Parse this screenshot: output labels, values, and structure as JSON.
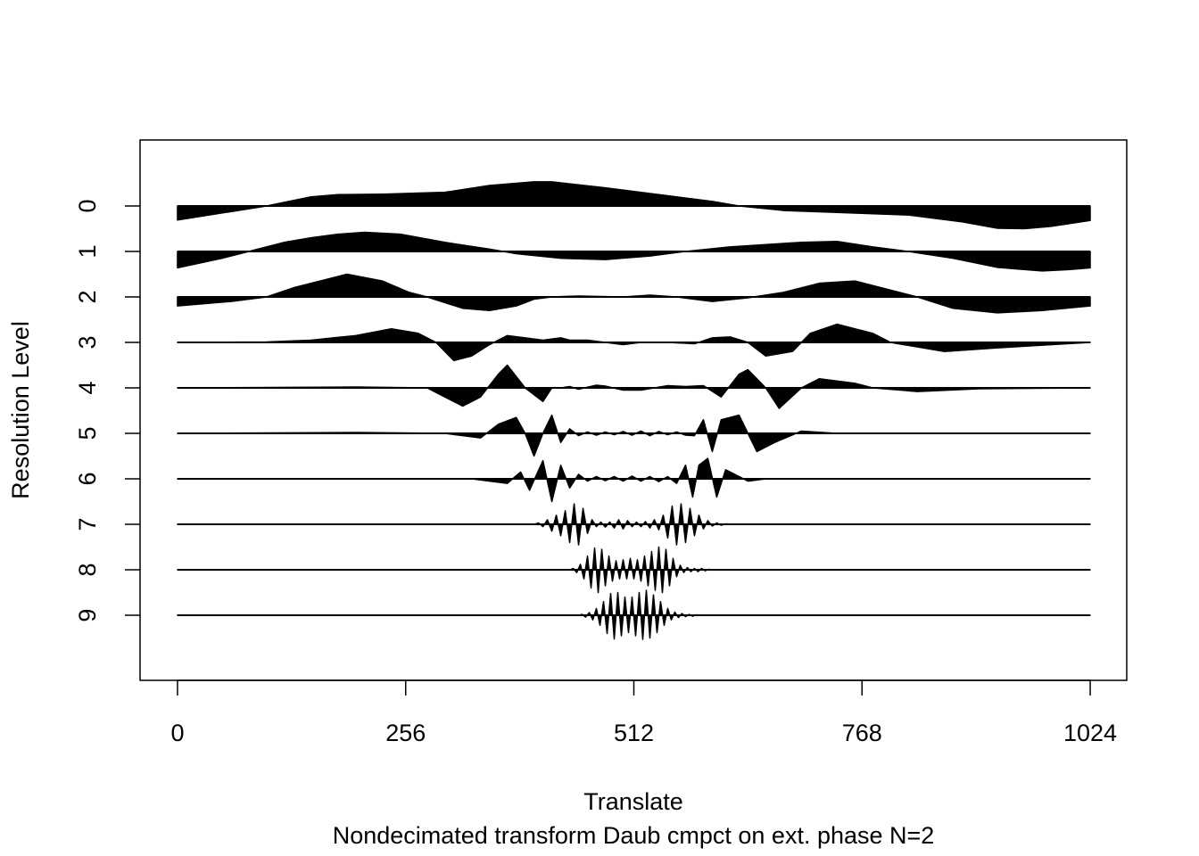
{
  "chart_data": {
    "type": "wiggle",
    "x_label": "Translate",
    "subtitle": "Nondecimated transform Daub cmpct on ext. phase N=2",
    "y_label": "Resolution Level",
    "xlim": [
      -42,
      1065
    ],
    "xticks": [
      0,
      256,
      512,
      768,
      1024
    ],
    "ylim": [
      10.43,
      -1.45
    ],
    "yticks": [
      0,
      1,
      2,
      3,
      4,
      5,
      6,
      7,
      8,
      9
    ],
    "color": "#000000",
    "series": [
      {
        "x": [
          0,
          100,
          150,
          180,
          230,
          300,
          350,
          400,
          420,
          480,
          540,
          600,
          630,
          680,
          750,
          820,
          880,
          920,
          950,
          980,
          1024
        ],
        "values": [
          -0.31,
          0,
          0.2,
          0.25,
          0.26,
          0.3,
          0.45,
          0.53,
          0.53,
          0.4,
          0.25,
          0.1,
          0,
          -0.1,
          -0.15,
          -0.2,
          -0.35,
          -0.49,
          -0.5,
          -0.45,
          -0.32
        ]
      },
      {
        "x": [
          0,
          50,
          80,
          120,
          150,
          180,
          210,
          250,
          300,
          350,
          380,
          430,
          480,
          530,
          570,
          620,
          700,
          740,
          780,
          820,
          870,
          920,
          970,
          1000,
          1024
        ],
        "values": [
          -0.36,
          -0.15,
          0,
          0.2,
          0.3,
          0.38,
          0.42,
          0.38,
          0.2,
          0.05,
          -0.05,
          -0.15,
          -0.18,
          -0.1,
          0,
          0.1,
          0.2,
          0.22,
          0.1,
          0,
          -0.15,
          -0.35,
          -0.43,
          -0.4,
          -0.36
        ]
      },
      {
        "x": [
          0,
          60,
          100,
          130,
          190,
          230,
          260,
          280,
          320,
          350,
          380,
          400,
          420,
          450,
          500,
          530,
          560,
          600,
          640,
          680,
          720,
          760,
          800,
          830,
          870,
          920,
          970,
          1024
        ],
        "values": [
          -0.2,
          -0.1,
          0,
          0.2,
          0.5,
          0.35,
          0.1,
          0,
          -0.25,
          -0.3,
          -0.2,
          -0.05,
          0,
          0.02,
          0,
          0.04,
          0,
          -0.1,
          -0.02,
          0.1,
          0.3,
          0.35,
          0.15,
          0,
          -0.25,
          -0.35,
          -0.3,
          -0.2
        ]
      },
      {
        "x": [
          0,
          100,
          150,
          200,
          240,
          270,
          290,
          310,
          330,
          350,
          370,
          390,
          410,
          430,
          440,
          460,
          480,
          500,
          520,
          550,
          580,
          600,
          620,
          640,
          660,
          690,
          710,
          740,
          780,
          800,
          860,
          920,
          1024
        ],
        "values": [
          0,
          0.01,
          0.05,
          0.15,
          0.3,
          0.2,
          0,
          -0.4,
          -0.3,
          -0.05,
          0.15,
          0.1,
          0.05,
          0.1,
          0.05,
          0.05,
          0,
          -0.05,
          0,
          0,
          -0.03,
          0.1,
          0.12,
          0,
          -0.3,
          -0.2,
          0.2,
          0.4,
          0.2,
          0,
          -0.2,
          -0.12,
          0
        ]
      },
      {
        "x": [
          0,
          200,
          280,
          320,
          340,
          360,
          370,
          390,
          410,
          420,
          430,
          440,
          450,
          470,
          480,
          500,
          520,
          550,
          570,
          590,
          610,
          630,
          640,
          660,
          675,
          700,
          720,
          760,
          780,
          830,
          900,
          1024
        ],
        "values": [
          0,
          0.02,
          0,
          -0.4,
          -0.2,
          0.3,
          0.5,
          0,
          -0.3,
          0,
          0,
          0.03,
          -0.03,
          0.06,
          0.04,
          -0.05,
          -0.05,
          0.05,
          0.03,
          0.05,
          -0.2,
          0.3,
          0.4,
          0,
          -0.45,
          0,
          0.2,
          0.1,
          0,
          -0.08,
          -0.02,
          0
        ]
      },
      {
        "x": [
          0,
          200,
          300,
          340,
          360,
          380,
          390,
          400,
          410,
          420,
          430,
          440,
          450,
          460,
          470,
          480,
          490,
          500,
          510,
          520,
          530,
          540,
          550,
          560,
          570,
          580,
          590,
          600,
          610,
          630,
          640,
          650,
          670,
          700,
          740,
          1024
        ],
        "values": [
          0,
          0.02,
          0,
          -0.1,
          0.2,
          0.35,
          0,
          -0.5,
          0,
          0.4,
          -0.2,
          0.1,
          -0.05,
          0.03,
          -0.04,
          0.03,
          -0.03,
          0.04,
          -0.04,
          0.05,
          -0.05,
          0.04,
          -0.03,
          0.03,
          -0.04,
          -0.05,
          0.3,
          -0.4,
          0.3,
          0.4,
          0,
          -0.4,
          -0.2,
          0.05,
          0,
          0
        ]
      },
      {
        "x": [
          0,
          330,
          370,
          385,
          395,
          410,
          420,
          430,
          440,
          450,
          460,
          470,
          480,
          490,
          500,
          510,
          520,
          530,
          540,
          550,
          560,
          570,
          578,
          585,
          595,
          605,
          615,
          640,
          660,
          1024
        ],
        "values": [
          0,
          0,
          -0.1,
          0.15,
          -0.25,
          0.4,
          -0.5,
          0.3,
          -0.2,
          0.1,
          -0.05,
          0.05,
          -0.04,
          0.05,
          -0.05,
          0.06,
          -0.05,
          0.05,
          -0.06,
          0.05,
          -0.1,
          0.3,
          -0.4,
          0.3,
          0.45,
          -0.4,
          0.2,
          -0.05,
          0,
          0
        ]
      },
      {
        "x": [
          0,
          400,
          405,
          410,
          415,
          420,
          425,
          430,
          435,
          440,
          445,
          450,
          455,
          460,
          465,
          470,
          475,
          480,
          485,
          490,
          495,
          500,
          505,
          510,
          515,
          520,
          525,
          530,
          535,
          540,
          545,
          550,
          555,
          560,
          565,
          570,
          575,
          580,
          585,
          590,
          595,
          600,
          605,
          610,
          615,
          620,
          1024
        ],
        "values": [
          0,
          0,
          0.03,
          -0.05,
          0.1,
          -0.15,
          0.2,
          -0.25,
          0.3,
          -0.4,
          0.45,
          -0.45,
          0.35,
          -0.2,
          0.1,
          -0.05,
          0.05,
          -0.06,
          0.05,
          -0.08,
          0.1,
          -0.1,
          0.08,
          -0.05,
          0.05,
          -0.05,
          0.06,
          -0.08,
          0.1,
          -0.12,
          0.2,
          -0.3,
          0.4,
          -0.45,
          0.45,
          -0.4,
          0.35,
          -0.25,
          0.2,
          -0.1,
          0.08,
          -0.04,
          0.03,
          -0.02,
          0.01,
          0,
          0
        ]
      },
      {
        "x": [
          0,
          440,
          444,
          448,
          452,
          456,
          460,
          464,
          468,
          472,
          476,
          480,
          484,
          488,
          492,
          496,
          500,
          504,
          508,
          512,
          516,
          520,
          524,
          528,
          532,
          536,
          540,
          544,
          548,
          552,
          556,
          560,
          564,
          568,
          572,
          576,
          580,
          584,
          588,
          592,
          596,
          600,
          1024
        ],
        "values": [
          0,
          0,
          0.03,
          -0.06,
          0.12,
          -0.2,
          0.3,
          -0.4,
          0.48,
          -0.5,
          0.45,
          -0.35,
          0.3,
          -0.25,
          0.2,
          -0.2,
          0.22,
          -0.2,
          0.25,
          -0.2,
          0.22,
          -0.25,
          0.3,
          -0.35,
          0.4,
          -0.45,
          0.5,
          -0.5,
          0.45,
          -0.35,
          0.25,
          -0.15,
          0.1,
          -0.06,
          0.05,
          -0.04,
          0.03,
          -0.04,
          0.03,
          -0.02,
          0.01,
          0,
          0
        ]
      },
      {
        "x": [
          0,
          450,
          454,
          458,
          462,
          466,
          470,
          474,
          478,
          482,
          486,
          490,
          494,
          498,
          502,
          506,
          510,
          514,
          518,
          522,
          526,
          530,
          534,
          538,
          542,
          546,
          550,
          554,
          558,
          562,
          566,
          570,
          574,
          578,
          582,
          586,
          590,
          1024
        ],
        "values": [
          0,
          0,
          0.02,
          -0.04,
          0.06,
          -0.1,
          0.15,
          -0.22,
          0.3,
          -0.4,
          0.48,
          -0.52,
          0.5,
          -0.45,
          0.4,
          -0.38,
          0.4,
          -0.45,
          0.5,
          -0.53,
          0.55,
          -0.5,
          0.45,
          -0.38,
          0.3,
          -0.22,
          0.15,
          -0.1,
          0.07,
          -0.05,
          0.04,
          -0.03,
          0.02,
          -0.02,
          0.01,
          0,
          0,
          0
        ]
      }
    ]
  }
}
